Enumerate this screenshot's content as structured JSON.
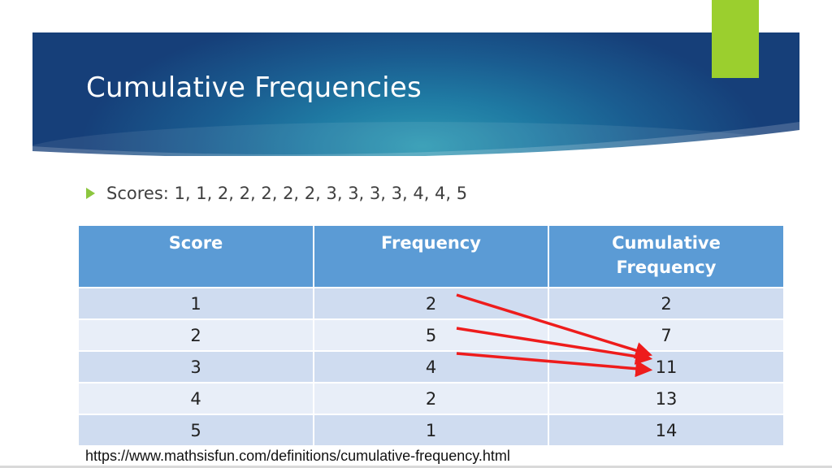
{
  "slide": {
    "title": "Cumulative Frequencies",
    "bullet": "Scores: 1, 1, 2, 2, 2, 2, 2, 3, 3, 3, 3, 4, 4, 5",
    "source": "https://www.mathsisfun.com/definitions/cumulative-frequency.html"
  },
  "table": {
    "headers": [
      "Score",
      "Frequency",
      "Cumulative Frequency"
    ],
    "rows": [
      [
        "1",
        "2",
        "2"
      ],
      [
        "2",
        "5",
        "7"
      ],
      [
        "3",
        "4",
        "11"
      ],
      [
        "4",
        "2",
        "13"
      ],
      [
        "5",
        "1",
        "14"
      ]
    ]
  },
  "colors": {
    "header_fill": "#5b9bd5",
    "row_odd": "#cfdcf0",
    "row_even": "#e8eef8",
    "arrow": "#ee1c1c",
    "accent": "#9bcf2e"
  }
}
